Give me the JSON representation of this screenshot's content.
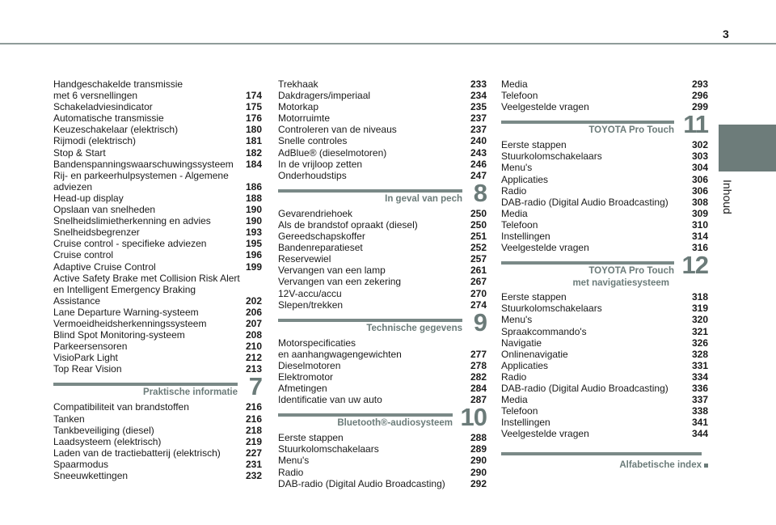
{
  "page_number": "3",
  "side_tab": {
    "label": "Inhoud",
    "color": "#6d7c7a"
  },
  "accent_color": "#6b7b79",
  "columns": [
    {
      "blocks": [
        {
          "entries": [
            {
              "title": "Handgeschakelde transmissie\nmet 6 versnellingen",
              "page": "174"
            },
            {
              "title": "Schakeladviesindicator",
              "page": "175"
            },
            {
              "title": "Automatische transmissie",
              "page": "176"
            },
            {
              "title": "Keuzeschakelaar (elektrisch)",
              "page": "180"
            },
            {
              "title": "Rijmodi (elektrisch)",
              "page": "181"
            },
            {
              "title": "Stop & Start",
              "page": "182"
            },
            {
              "title": "Bandenspanningswaarschuwingssysteem",
              "page": "184"
            },
            {
              "title": "Rij- en parkeerhulpsystemen - Algemene\nadviezen",
              "page": "186"
            },
            {
              "title": "Head-up display",
              "page": "188"
            },
            {
              "title": "Opslaan van snelheden",
              "page": "190"
            },
            {
              "title": "Snelheidslimietherkenning en advies",
              "page": "190"
            },
            {
              "title": "Snelheidsbegrenzer",
              "page": "193"
            },
            {
              "title": "Cruise control - specifieke adviezen",
              "page": "195"
            },
            {
              "title": "Cruise control",
              "page": "196"
            },
            {
              "title": "Adaptive Cruise Control",
              "page": "199"
            },
            {
              "title": "Active Safety Brake met Collision Risk Alert\nen Intelligent Emergency Braking\nAssistance",
              "page": "202"
            },
            {
              "title": "Lane Departure Warning-systeem",
              "page": "206"
            },
            {
              "title": "Vermoeidheidsherkenningssysteem",
              "page": "207"
            },
            {
              "title": "Blind Spot Monitoring-systeem",
              "page": "208"
            },
            {
              "title": "Parkeersensoren",
              "page": "210"
            },
            {
              "title": "VisioPark Light",
              "page": "212"
            },
            {
              "title": "Top Rear Vision",
              "page": "213"
            }
          ]
        },
        {
          "section": {
            "number": "7",
            "title": "Praktische informatie"
          },
          "entries": [
            {
              "title": "Compatibiliteit van brandstoffen",
              "page": "216"
            },
            {
              "title": "Tanken",
              "page": "216"
            },
            {
              "title": "Tankbeveiliging (diesel)",
              "page": "218"
            },
            {
              "title": "Laadsysteem (elektrisch)",
              "page": "219"
            },
            {
              "title": "Laden van de tractiebatterij (elektrisch)",
              "page": "227"
            },
            {
              "title": "Spaarmodus",
              "page": "231"
            },
            {
              "title": "Sneeuwkettingen",
              "page": "232"
            }
          ]
        }
      ]
    },
    {
      "blocks": [
        {
          "entries": [
            {
              "title": "Trekhaak",
              "page": "233"
            },
            {
              "title": "Dakdragers/imperiaal",
              "page": "234"
            },
            {
              "title": "Motorkap",
              "page": "235"
            },
            {
              "title": "Motorruimte",
              "page": "237"
            },
            {
              "title": "Controleren van de niveaus",
              "page": "237"
            },
            {
              "title": "Snelle controles",
              "page": "240"
            },
            {
              "title": "AdBlue® (dieselmotoren)",
              "page": "243"
            },
            {
              "title": "In de vrijloop zetten",
              "page": "246"
            },
            {
              "title": "Onderhoudstips",
              "page": "247"
            }
          ]
        },
        {
          "section": {
            "number": "8",
            "title": "In geval van pech"
          },
          "entries": [
            {
              "title": "Gevarendriehoek",
              "page": "250"
            },
            {
              "title": "Als de brandstof opraakt (diesel)",
              "page": "250"
            },
            {
              "title": "Gereedschapskoffer",
              "page": "251"
            },
            {
              "title": "Bandenreparatieset",
              "page": "252"
            },
            {
              "title": "Reservewiel",
              "page": "257"
            },
            {
              "title": "Vervangen van een lamp",
              "page": "261"
            },
            {
              "title": "Vervangen van een zekering",
              "page": "267"
            },
            {
              "title": "12V-accu/accu",
              "page": "270"
            },
            {
              "title": "Slepen/trekken",
              "page": "274"
            }
          ]
        },
        {
          "section": {
            "number": "9",
            "title": "Technische gegevens"
          },
          "entries": [
            {
              "title": "Motorspecificaties\nen aanhangwagengewichten",
              "page": "277"
            },
            {
              "title": "Dieselmotoren",
              "page": "278"
            },
            {
              "title": "Elektromotor",
              "page": "282"
            },
            {
              "title": "Afmetingen",
              "page": "284"
            },
            {
              "title": "Identificatie van uw auto",
              "page": "287"
            }
          ]
        },
        {
          "section": {
            "number": "10",
            "title": "Bluetooth®-audiosysteem"
          },
          "entries": [
            {
              "title": "Eerste stappen",
              "page": "288"
            },
            {
              "title": "Stuurkolomschakelaars",
              "page": "289"
            },
            {
              "title": "Menu's",
              "page": "290"
            },
            {
              "title": "Radio",
              "page": "290"
            },
            {
              "title": "DAB-radio (Digital Audio Broadcasting)",
              "page": "292"
            }
          ]
        }
      ]
    },
    {
      "blocks": [
        {
          "entries": [
            {
              "title": "Media",
              "page": "293"
            },
            {
              "title": "Telefoon",
              "page": "296"
            },
            {
              "title": "Veelgestelde vragen",
              "page": "299"
            }
          ]
        },
        {
          "section": {
            "number": "11",
            "title": "TOYOTA Pro Touch"
          },
          "entries": [
            {
              "title": "Eerste stappen",
              "page": "302"
            },
            {
              "title": "Stuurkolomschakelaars",
              "page": "303"
            },
            {
              "title": "Menu's",
              "page": "304"
            },
            {
              "title": "Applicaties",
              "page": "306"
            },
            {
              "title": "Radio",
              "page": "306"
            },
            {
              "title": "DAB-radio (Digital Audio Broadcasting)",
              "page": "308"
            },
            {
              "title": "Media",
              "page": "309"
            },
            {
              "title": "Telefoon",
              "page": "310"
            },
            {
              "title": "Instellingen",
              "page": "314"
            },
            {
              "title": "Veelgestelde vragen",
              "page": "316"
            }
          ]
        },
        {
          "section": {
            "number": "12",
            "title": "TOYOTA Pro Touch",
            "subtitle": "met navigatiesysteem"
          },
          "entries": [
            {
              "title": "Eerste stappen",
              "page": "318"
            },
            {
              "title": "Stuurkolomschakelaars",
              "page": "319"
            },
            {
              "title": "Menu's",
              "page": "320"
            },
            {
              "title": "Spraakcommando's",
              "page": "321"
            },
            {
              "title": "Navigatie",
              "page": "326"
            },
            {
              "title": "Onlinenavigatie",
              "page": "328"
            },
            {
              "title": "Applicaties",
              "page": "331"
            },
            {
              "title": "Radio",
              "page": "334"
            },
            {
              "title": "DAB-radio (Digital Audio Broadcasting)",
              "page": "336"
            },
            {
              "title": "Media",
              "page": "337"
            },
            {
              "title": "Telefoon",
              "page": "338"
            },
            {
              "title": "Instellingen",
              "page": "341"
            },
            {
              "title": "Veelgestelde vragen",
              "page": "344"
            }
          ]
        }
      ]
    }
  ],
  "index_link": {
    "title": "Alfabetische index",
    "icon": "square-bullet-icon"
  }
}
